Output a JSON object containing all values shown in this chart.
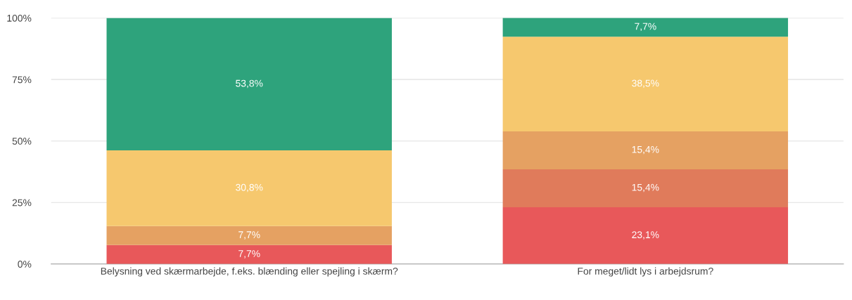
{
  "chart_data": {
    "type": "bar",
    "stacked": true,
    "categories": [
      "Belysning ved skærmarbejde, f.eks. blænding eller spejling i skærm?",
      "For meget/lidt lys i arbejdsrum?"
    ],
    "series": [
      {
        "color": "#e8585a",
        "values": [
          7.7,
          23.1
        ],
        "value_labels": [
          "7,7%",
          "23,1%"
        ]
      },
      {
        "color": "#e07b5b",
        "values": [
          null,
          15.4
        ],
        "value_labels": [
          null,
          "15,4%"
        ]
      },
      {
        "color": "#e5a162",
        "values": [
          7.7,
          15.4
        ],
        "value_labels": [
          "7,7%",
          "15,4%"
        ]
      },
      {
        "color": "#f6c86e",
        "values": [
          30.8,
          38.5
        ],
        "value_labels": [
          "30,8%",
          "38,5%"
        ]
      },
      {
        "color": "#2ea37c",
        "values": [
          53.8,
          7.7
        ],
        "value_labels": [
          "53,8%",
          "7,7%"
        ]
      }
    ],
    "ylim": [
      0,
      100
    ],
    "yticks": [
      {
        "value": 0,
        "label": "0%"
      },
      {
        "value": 25,
        "label": "25%"
      },
      {
        "value": 50,
        "label": "50%"
      },
      {
        "value": 75,
        "label": "75%"
      },
      {
        "value": 100,
        "label": "100%"
      }
    ],
    "grid": "y",
    "legend": false
  }
}
